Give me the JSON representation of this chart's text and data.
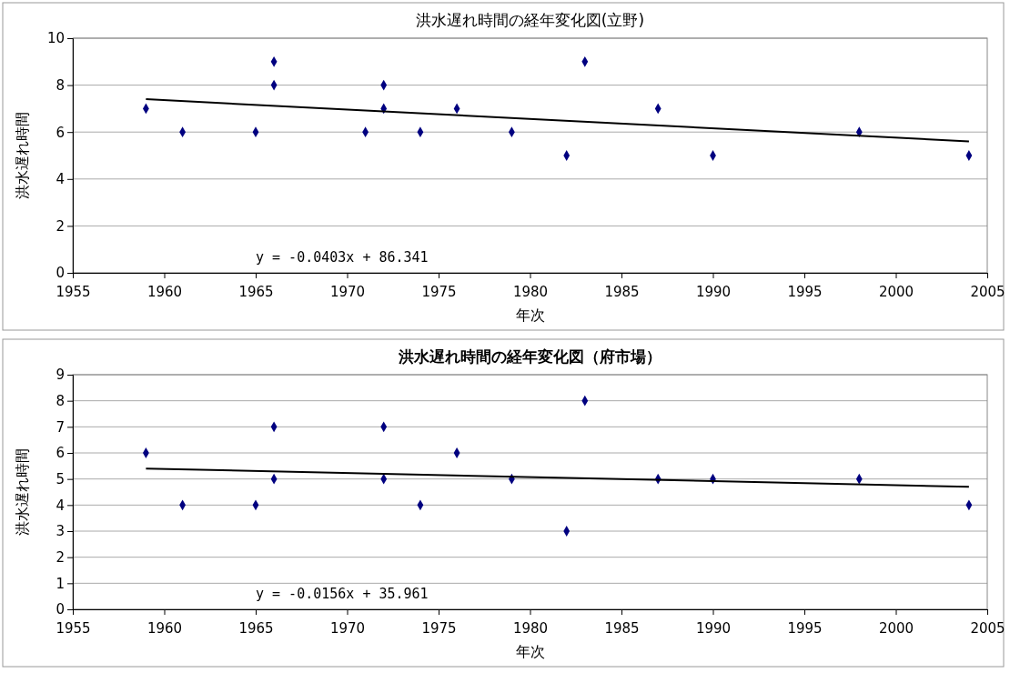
{
  "chart_data": [
    {
      "type": "scatter",
      "title": "洪水遅れ時間の経年変化図(立野)",
      "xlabel": "年次",
      "ylabel": "洪水遅れ時間",
      "xlim": [
        1955,
        2005
      ],
      "xticks": [
        1955,
        1960,
        1965,
        1970,
        1975,
        1980,
        1985,
        1990,
        1995,
        2000,
        2005
      ],
      "ylim": [
        0,
        10
      ],
      "yticks": [
        0,
        2,
        4,
        6,
        8,
        10
      ],
      "grid": "y",
      "series": [
        {
          "color": "#000080",
          "marker": "diamond",
          "x": [
            1959,
            1961,
            1965,
            1966,
            1966,
            1971,
            1972,
            1972,
            1974,
            1976,
            1979,
            1982,
            1983,
            1987,
            1990,
            1998,
            2004
          ],
          "values": [
            7,
            6,
            6,
            9,
            8,
            6,
            8,
            7,
            6,
            7,
            6,
            5,
            9,
            7,
            5,
            6,
            5
          ]
        },
        {
          "type": "line",
          "color": "#000000",
          "marker": "none",
          "x": [
            1959,
            2004
          ],
          "values": [
            7.4,
            5.6
          ]
        }
      ],
      "annotations": [
        "y = -0.0403x + 86.341"
      ]
    },
    {
      "type": "scatter",
      "title": "洪水遅れ時間の経年変化図（府市場）",
      "xlabel": "年次",
      "ylabel": "洪水遅れ時間",
      "xlim": [
        1955,
        2005
      ],
      "xticks": [
        1955,
        1960,
        1965,
        1970,
        1975,
        1980,
        1985,
        1990,
        1995,
        2000,
        2005
      ],
      "ylim": [
        0,
        9
      ],
      "yticks": [
        0,
        1,
        2,
        3,
        4,
        5,
        6,
        7,
        8,
        9
      ],
      "grid": "y",
      "series": [
        {
          "color": "#000080",
          "marker": "diamond",
          "x": [
            1959,
            1961,
            1965,
            1966,
            1966,
            1972,
            1972,
            1974,
            1976,
            1979,
            1982,
            1983,
            1987,
            1990,
            1998,
            2004
          ],
          "values": [
            6,
            4,
            4,
            7,
            5,
            7,
            5,
            4,
            6,
            5,
            3,
            8,
            5,
            5,
            5,
            4
          ]
        },
        {
          "type": "line",
          "color": "#000000",
          "marker": "none",
          "x": [
            1959,
            2004
          ],
          "values": [
            5.4,
            4.7
          ]
        }
      ],
      "annotations": [
        "y = -0.0156x + 35.961"
      ]
    }
  ]
}
